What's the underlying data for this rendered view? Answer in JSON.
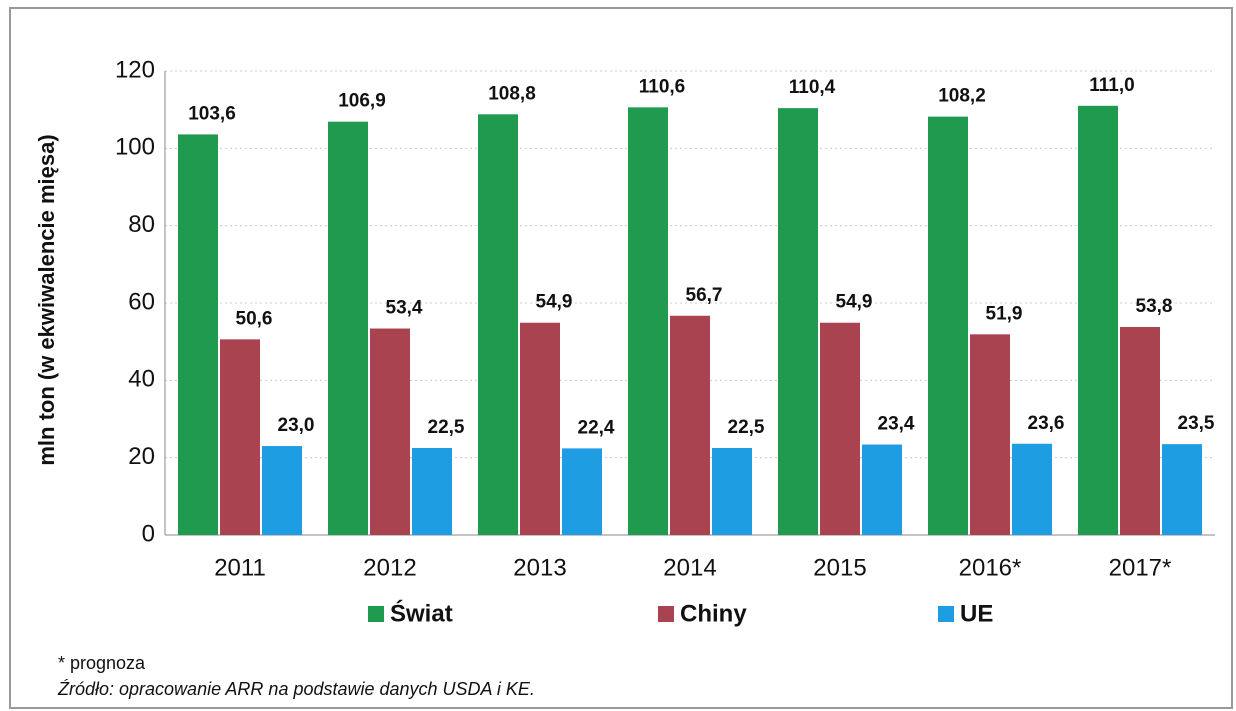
{
  "chart_data": {
    "type": "bar",
    "y_label": "mln ton (w ekwiwalencie mięsa)",
    "categories": [
      "2011",
      "2012",
      "2013",
      "2014",
      "2015",
      "2016*",
      "2017*"
    ],
    "series": [
      {
        "name": "Świat",
        "color": "#1f9a4e",
        "values": [
          103.6,
          106.9,
          108.8,
          110.6,
          110.4,
          108.2,
          111.0
        ],
        "value_labels": [
          "103,6",
          "106,9",
          "108,8",
          "110,6",
          "110,4",
          "108,2",
          "111,0"
        ]
      },
      {
        "name": "Chiny",
        "color": "#a9434f",
        "values": [
          50.6,
          53.4,
          54.9,
          56.7,
          54.9,
          51.9,
          53.8
        ],
        "value_labels": [
          "50,6",
          "53,4",
          "54,9",
          "56,7",
          "54,9",
          "51,9",
          "53,8"
        ]
      },
      {
        "name": "UE",
        "color": "#1e9de2",
        "values": [
          23.0,
          22.5,
          22.4,
          22.5,
          23.4,
          23.6,
          23.5
        ],
        "value_labels": [
          "23,0",
          "22,5",
          "22,4",
          "22,5",
          "23,4",
          "23,6",
          "23,5"
        ]
      }
    ],
    "ylim": [
      0,
      120
    ],
    "yticks": [
      0,
      20,
      40,
      60,
      80,
      100,
      120
    ],
    "grid": true,
    "legend": "bottom",
    "footnote": "* prognoza",
    "source": "Źródło: opracowanie ARR na podstawie danych USDA i KE."
  }
}
